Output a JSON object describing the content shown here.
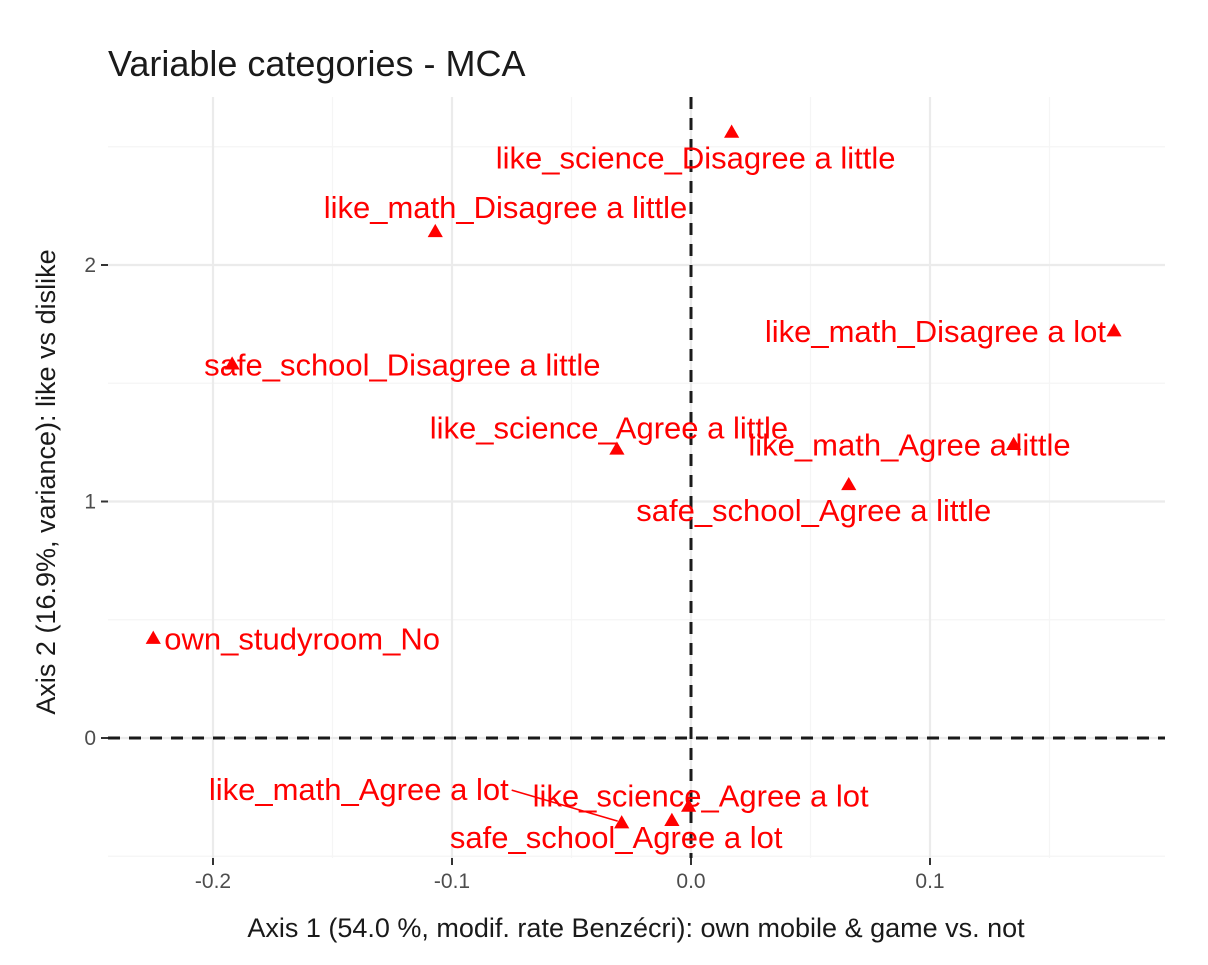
{
  "chart_data": {
    "type": "scatter",
    "title": "Variable categories - MCA",
    "xlabel": "Axis 1 (54.0 %, modif. rate Benzécri): own mobile & game vs. not",
    "ylabel": "Axis 2 (16.9%, variance): like vs dislike",
    "xlim": [
      -0.242,
      0.19
    ],
    "ylim": [
      -0.49,
      2.68
    ],
    "x_ticks": [
      -0.2,
      -0.1,
      0.0,
      0.1
    ],
    "x_tick_labels": [
      "-0.2",
      "-0.1",
      "0.0",
      "0.1"
    ],
    "y_ticks": [
      0,
      1,
      2
    ],
    "y_tick_labels": [
      "0",
      "1",
      "2"
    ],
    "grid": true,
    "reference_lines": {
      "x": 0,
      "y": 0
    },
    "marker": "triangle",
    "color": "#ff0000",
    "points": [
      {
        "label": "like_science_Disagree a little",
        "x": 0.017,
        "y": 2.56
      },
      {
        "label": "like_math_Disagree a little",
        "x": -0.107,
        "y": 2.14
      },
      {
        "label": "like_math_Disagree a lot",
        "x": 0.177,
        "y": 1.72
      },
      {
        "label": "safe_school_Disagree a little",
        "x": -0.192,
        "y": 1.58
      },
      {
        "label": "like_science_Agree a little",
        "x": -0.031,
        "y": 1.22
      },
      {
        "label": "like_math_Agree a little",
        "x": 0.135,
        "y": 1.24
      },
      {
        "label": "safe_school_Agree a little",
        "x": 0.066,
        "y": 1.07
      },
      {
        "label": "own_studyroom_No",
        "x": -0.225,
        "y": 0.42
      },
      {
        "label": "like_science_Agree a lot",
        "x": -0.001,
        "y": -0.29
      },
      {
        "label": "like_math_Agree a lot",
        "x": -0.029,
        "y": -0.36
      },
      {
        "label": "safe_school_Agree a lot",
        "x": -0.008,
        "y": -0.35
      }
    ]
  }
}
